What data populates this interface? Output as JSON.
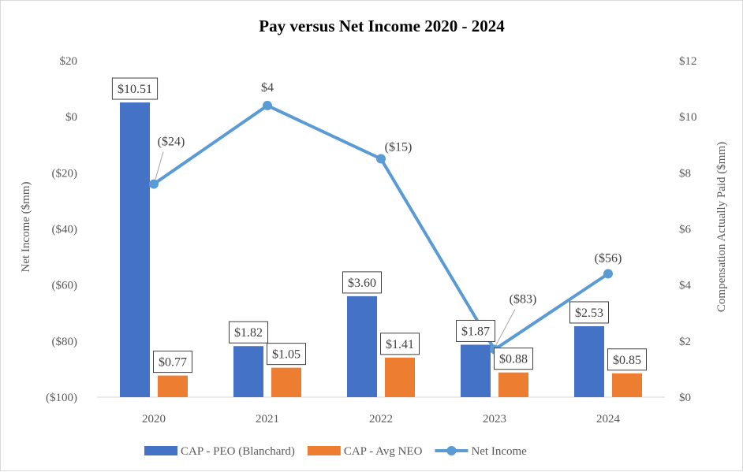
{
  "chart_data": {
    "type": "bar",
    "title": "Pay versus Net Income 2020 - 2024",
    "categories": [
      "2020",
      "2021",
      "2022",
      "2023",
      "2024"
    ],
    "series": [
      {
        "name": "CAP - PEO (Blanchard)",
        "kind": "bar",
        "axis": "right",
        "color": "#4472c4",
        "values": [
          10.51,
          1.82,
          3.6,
          1.87,
          2.53
        ],
        "labels": [
          "$10.51",
          "$1.82",
          "$3.60",
          "$1.87",
          "$2.53"
        ]
      },
      {
        "name": "CAP - Avg NEO",
        "kind": "bar",
        "axis": "right",
        "color": "#ed7d31",
        "values": [
          0.77,
          1.05,
          1.41,
          0.88,
          0.85
        ],
        "labels": [
          "$0.77",
          "$1.05",
          "$1.41",
          "$0.88",
          "$0.85"
        ]
      },
      {
        "name": "Net Income",
        "kind": "line",
        "axis": "left",
        "color": "#5b9bd5",
        "values": [
          -24,
          4,
          -15,
          -83,
          -56
        ],
        "labels": [
          "($24)",
          "$4",
          "($15)",
          "($83)",
          "($56)"
        ]
      }
    ],
    "left_axis": {
      "label": "Net Income ($mm)",
      "ylim": [
        -100,
        20
      ],
      "ticks": [
        20,
        0,
        -20,
        -40,
        -60,
        -80,
        -100
      ],
      "tick_labels": [
        "$20",
        "$0",
        "($20)",
        "($40)",
        "($60)",
        "($80)",
        "($100)"
      ]
    },
    "right_axis": {
      "label": "Compensation Actually Paid ($mm)",
      "ylim": [
        0,
        12
      ],
      "ticks": [
        12,
        10,
        8,
        6,
        4,
        2,
        0
      ],
      "tick_labels": [
        "$12",
        "$10",
        "$8",
        "$6",
        "$4",
        "$2",
        "$0"
      ]
    },
    "grid": false,
    "legend": "bottom"
  }
}
